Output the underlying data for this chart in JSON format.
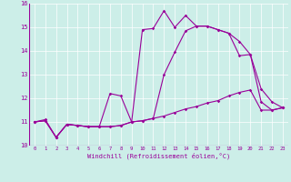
{
  "xlabel": "Windchill (Refroidissement éolien,°C)",
  "background_color": "#cceee8",
  "line_color": "#990099",
  "xlim": [
    -0.5,
    23.5
  ],
  "ylim": [
    10,
    16
  ],
  "xticks": [
    0,
    1,
    2,
    3,
    4,
    5,
    6,
    7,
    8,
    9,
    10,
    11,
    12,
    13,
    14,
    15,
    16,
    17,
    18,
    19,
    20,
    21,
    22,
    23
  ],
  "yticks": [
    10,
    11,
    12,
    13,
    14,
    15,
    16
  ],
  "line1_x": [
    0,
    1,
    2,
    3,
    4,
    5,
    6,
    7,
    8,
    9,
    10,
    11,
    12,
    13,
    14,
    15,
    16,
    17,
    18,
    19,
    20,
    21,
    22,
    23
  ],
  "line1_y": [
    11.0,
    11.1,
    10.35,
    10.9,
    10.85,
    10.8,
    10.8,
    10.8,
    10.85,
    11.0,
    11.05,
    11.15,
    11.25,
    11.4,
    11.55,
    11.65,
    11.8,
    11.9,
    12.1,
    12.25,
    12.35,
    11.5,
    11.5,
    11.6
  ],
  "line2_x": [
    0,
    1,
    2,
    3,
    4,
    5,
    6,
    7,
    8,
    9,
    10,
    11,
    12,
    13,
    14,
    15,
    16,
    17,
    18,
    19,
    20,
    21,
    22,
    23
  ],
  "line2_y": [
    11.0,
    11.05,
    10.35,
    10.9,
    10.85,
    10.8,
    10.8,
    10.8,
    10.85,
    11.0,
    14.9,
    14.95,
    15.7,
    15.0,
    15.5,
    15.05,
    15.05,
    14.9,
    14.75,
    13.8,
    13.85,
    11.85,
    11.5,
    11.6
  ],
  "line3_x": [
    0,
    1,
    2,
    3,
    4,
    5,
    6,
    7,
    8,
    9,
    10,
    11,
    12,
    13,
    14,
    15,
    16,
    17,
    18,
    19,
    20,
    21,
    22,
    23
  ],
  "line3_y": [
    11.0,
    11.05,
    10.35,
    10.9,
    10.85,
    10.8,
    10.8,
    12.2,
    12.1,
    11.0,
    11.05,
    11.15,
    13.0,
    13.95,
    14.85,
    15.05,
    15.05,
    14.9,
    14.75,
    14.4,
    13.85,
    12.4,
    11.85,
    11.6
  ]
}
